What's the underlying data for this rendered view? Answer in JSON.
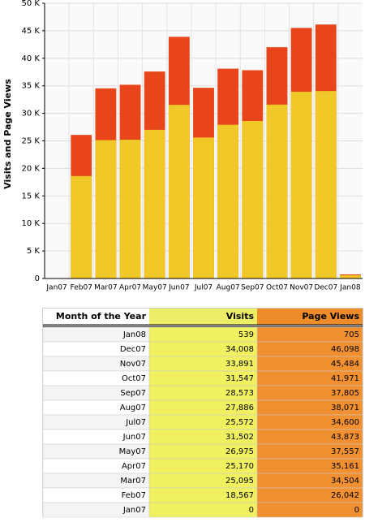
{
  "chart_data": {
    "type": "bar",
    "y_label": "Visits and Page Views",
    "categories": [
      "Jan07",
      "Feb07",
      "Mar07",
      "Apr07",
      "May07",
      "Jun07",
      "Jul07",
      "Aug07",
      "Sep07",
      "Oct07",
      "Nov07",
      "Dec07",
      "Jan08"
    ],
    "series": [
      {
        "name": "Visits",
        "color": "#f0c828",
        "values": [
          0,
          18567,
          25095,
          25170,
          26975,
          31502,
          25572,
          27886,
          28573,
          31547,
          33891,
          34008,
          539
        ],
        "value_labels": [
          "0",
          "18,567",
          "25,095",
          "25,170",
          "26,975",
          "31,502",
          "25,572",
          "27,886",
          "28,573",
          "31,547",
          "33,891",
          "34,008",
          "539"
        ]
      },
      {
        "name": "Page Views",
        "color": "#e8461a",
        "values": [
          0,
          26042,
          34504,
          35161,
          37557,
          43873,
          34600,
          38071,
          37805,
          41971,
          45484,
          46098,
          705
        ],
        "value_labels": [
          "0",
          "26,042",
          "34,504",
          "35,161",
          "37,557",
          "43,873",
          "34,600",
          "38,071",
          "37,805",
          "41,971",
          "45,484",
          "46,098",
          "705"
        ]
      }
    ],
    "ylim": [
      0,
      50000
    ],
    "yticks": [
      0,
      {
        "value": 5000,
        "label": "5 K"
      },
      {
        "value": 10000,
        "label": "10 K"
      },
      {
        "value": 15000,
        "label": "15 K"
      },
      {
        "value": 20000,
        "label": "20 K"
      },
      {
        "value": 25000,
        "label": "25 K"
      },
      {
        "value": 30000,
        "label": "30 K"
      },
      {
        "value": 35000,
        "label": "35 K"
      },
      {
        "value": 40000,
        "label": "40 K"
      },
      {
        "value": 45000,
        "label": "45 K"
      },
      {
        "value": 50000,
        "label": "50 K"
      }
    ],
    "grid": true
  },
  "table": {
    "headers": [
      "Month of the Year",
      "Visits",
      "Page Views"
    ]
  }
}
